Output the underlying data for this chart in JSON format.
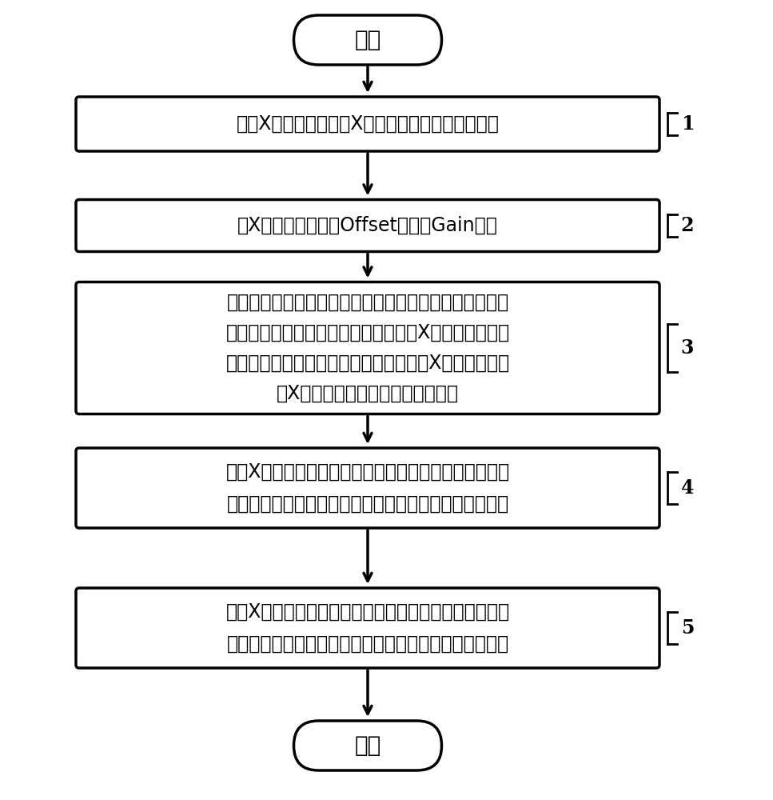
{
  "bg_color": "#ffffff",
  "line_color": "#000000",
  "text_color": "#000000",
  "start_end_color": "#ffffff",
  "box_color": "#ffffff",
  "start_text": "开始",
  "end_text": "结束",
  "boxes": [
    {
      "label": "1",
      "text": "对准X光机的出光点和X射探测器接收平面的中心点",
      "lines": [
        "对准X光机的出光点和X射探测器接收平面的中心点"
      ],
      "multiline": false
    },
    {
      "label": "2",
      "text": "对X射线探测器进行Offset矫正和Gain矫正",
      "lines": [
        "对X射线探测器进行Offset矫正和Gain矫正"
      ],
      "multiline": false
    },
    {
      "label": "3",
      "text": "精确对准源光栅、分束光栅与分析光栅，使这三块光栅的\n刻线相互平行、三块光栅所在的平面和X射线探测器的平\n面相互平行，同时使三块光栅的中心点、X光机的出光点\n和X射线探测器中心点在一条直线上",
      "lines": [
        "精确对准源光栅、分束光栅与分析光栅，使这三块光栅的",
        "刻线相互平行、三块光栅所在的平面和X射线探测器的平",
        "面相互平行，同时使三块光栅的中心点、X光机的出光点",
        "和X射线探测器中心点在一条直线上"
      ],
      "multiline": true
    },
    {
      "label": "4",
      "text": "调节X光机的管电压到高能处进行相位步进扫描，同时旋\n转样品室，采集图像并重建出高能处样品的三维相位信息",
      "lines": [
        "调节X光机的管电压到高能处进行相位步进扫描，同时旋",
        "转样品室，采集图像并重建出高能处样品的三维相位信息"
      ],
      "multiline": true
    },
    {
      "label": "5",
      "text": "调节X光机的管电压到低能处进行相位步进扫描，同时旋\n转样品室，采集图像并重建出低能处样品的三维相位信息",
      "lines": [
        "调节X光机的管电压到低能处进行相位步进扫描，同时旋",
        "转样品室，采集图像并重建出低能处样品的三维相位信息"
      ],
      "multiline": true
    }
  ],
  "font_size_main": 17,
  "font_size_label": 15,
  "font_size_terminal": 20
}
